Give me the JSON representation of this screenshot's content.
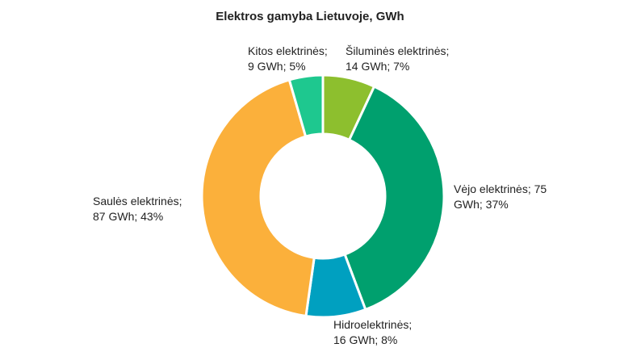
{
  "chart_data": {
    "type": "pie",
    "title": "Elektros gamyba Lietuvoje, GWh",
    "unit": "GWh",
    "donut": true,
    "slices": [
      {
        "name": "Šiluminės elektrinės",
        "value": 14,
        "percent": 7,
        "color": "#8dbf2e",
        "label_lines": [
          "Šiluminės elektrinės;",
          "14 GWh; 7%"
        ]
      },
      {
        "name": "Vėjo elektrinės",
        "value": 75,
        "percent": 37,
        "color": "#00a06e",
        "label_lines": [
          "Vėjo elektrinės; 75",
          "GWh; 37%"
        ]
      },
      {
        "name": "Hidroelektrinės",
        "value": 16,
        "percent": 8,
        "color": "#00a0c0",
        "label_lines": [
          "Hidroelektrinės;",
          "16 GWh; 8%"
        ]
      },
      {
        "name": "Saulės elektrinės",
        "value": 87,
        "percent": 43,
        "color": "#fbb03b",
        "label_lines": [
          "Saulės elektrinės;",
          "87 GWh; 43%"
        ]
      },
      {
        "name": "Kitos elektrinės",
        "value": 9,
        "percent": 5,
        "color": "#1ec88f",
        "label_lines": [
          "Kitos elektrinės;",
          "9 GWh; 5%"
        ]
      }
    ]
  }
}
